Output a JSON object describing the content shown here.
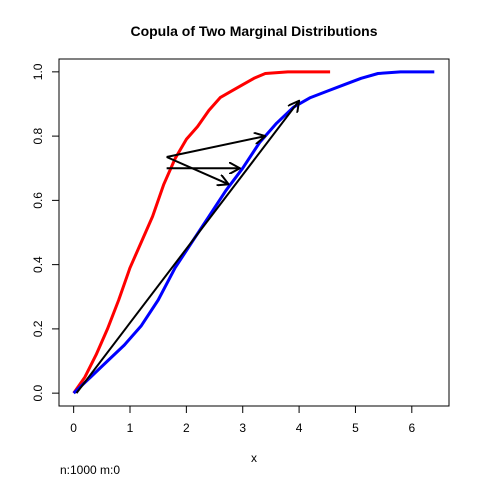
{
  "chart_data": {
    "type": "line",
    "title": "Copula of Two Marginal Distributions",
    "xlabel": "x",
    "ylabel": "",
    "xlim": [
      -0.26,
      6.66
    ],
    "ylim": [
      -0.04,
      1.04
    ],
    "x_ticks": [
      0,
      1,
      2,
      3,
      4,
      5,
      6
    ],
    "y_ticks": [
      0.0,
      0.2,
      0.4,
      0.6,
      0.8,
      1.0
    ],
    "x_tick_labels": [
      "0",
      "1",
      "2",
      "3",
      "4",
      "5",
      "6"
    ],
    "y_tick_labels": [
      "0.0",
      "0.2",
      "0.4",
      "0.6",
      "0.8",
      "1.0"
    ],
    "grid": false,
    "footnote": "n:1000 m:0",
    "series": [
      {
        "color": "#ff0000",
        "points": [
          [
            0.0,
            0.0
          ],
          [
            0.2,
            0.05
          ],
          [
            0.4,
            0.12
          ],
          [
            0.6,
            0.2
          ],
          [
            0.8,
            0.29
          ],
          [
            1.0,
            0.39
          ],
          [
            1.2,
            0.47
          ],
          [
            1.4,
            0.55
          ],
          [
            1.6,
            0.65
          ],
          [
            1.8,
            0.73
          ],
          [
            2.0,
            0.79
          ],
          [
            2.2,
            0.83
          ],
          [
            2.4,
            0.88
          ],
          [
            2.6,
            0.92
          ],
          [
            2.8,
            0.94
          ],
          [
            3.0,
            0.96
          ],
          [
            3.2,
            0.98
          ],
          [
            3.4,
            0.995
          ],
          [
            3.8,
            1.0
          ],
          [
            4.55,
            1.0
          ]
        ]
      },
      {
        "color": "#0000ff",
        "points": [
          [
            0.0,
            0.0
          ],
          [
            0.3,
            0.05
          ],
          [
            0.6,
            0.1
          ],
          [
            0.9,
            0.15
          ],
          [
            1.2,
            0.21
          ],
          [
            1.5,
            0.29
          ],
          [
            1.8,
            0.39
          ],
          [
            2.1,
            0.47
          ],
          [
            2.4,
            0.55
          ],
          [
            2.7,
            0.63
          ],
          [
            3.0,
            0.7
          ],
          [
            3.3,
            0.78
          ],
          [
            3.6,
            0.84
          ],
          [
            3.9,
            0.89
          ],
          [
            4.2,
            0.92
          ],
          [
            4.5,
            0.94
          ],
          [
            4.8,
            0.96
          ],
          [
            5.1,
            0.98
          ],
          [
            5.4,
            0.995
          ],
          [
            5.8,
            1.0
          ],
          [
            6.4,
            1.0
          ]
        ]
      }
    ],
    "arrows": [
      {
        "from": [
          0.05,
          0.0
        ],
        "to": [
          4.0,
          0.91
        ],
        "color": "#000000"
      },
      {
        "from": [
          1.65,
          0.735
        ],
        "to": [
          3.4,
          0.8
        ],
        "color": "#000000"
      },
      {
        "from": [
          1.65,
          0.7
        ],
        "to": [
          2.95,
          0.7
        ],
        "color": "#000000"
      },
      {
        "from": [
          1.65,
          0.735
        ],
        "to": [
          2.75,
          0.65
        ],
        "color": "#000000"
      }
    ]
  }
}
